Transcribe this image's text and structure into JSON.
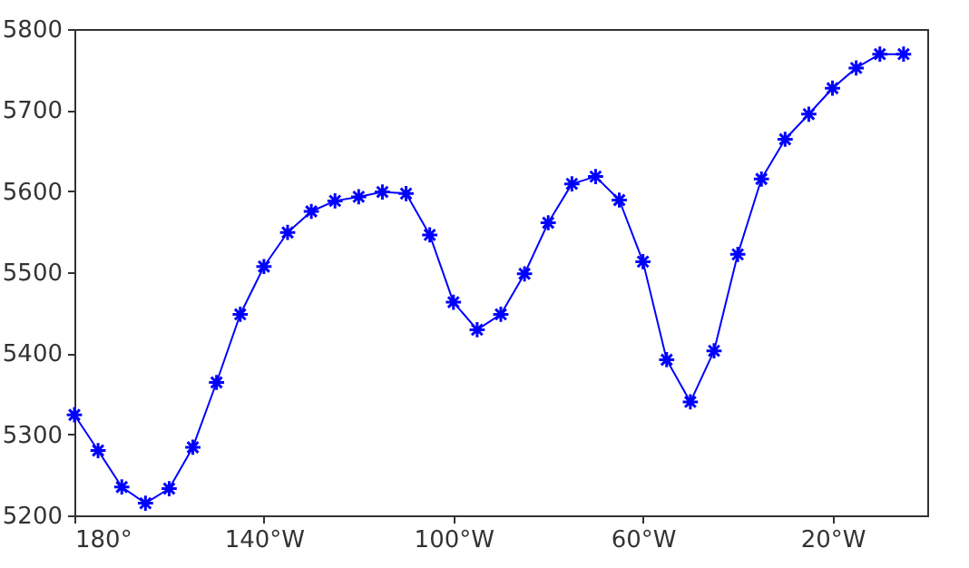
{
  "chart_data": {
    "type": "line",
    "x": [
      -180,
      -175,
      -170,
      -165,
      -160,
      -155,
      -150,
      -145,
      -140,
      -135,
      -130,
      -125,
      -120,
      -115,
      -110,
      -105,
      -100,
      -95,
      -90,
      -85,
      -80,
      -75,
      -70,
      -65,
      -60,
      -55,
      -50,
      -45,
      -40,
      -35,
      -30,
      -25,
      -20,
      -15,
      -10,
      -5
    ],
    "series": [
      {
        "color": "#0000ff",
        "values": [
          5324,
          5280,
          5235,
          5215,
          5233,
          5284,
          5364,
          5448,
          5507,
          5549,
          5575,
          5588,
          5593,
          5599,
          5597,
          5546,
          5463,
          5429,
          5448,
          5498,
          5561,
          5609,
          5618,
          5589,
          5513,
          5392,
          5340,
          5403,
          5522,
          5615,
          5664,
          5695,
          5727,
          5752,
          5769,
          5769
        ]
      }
    ],
    "xlim": [
      -180,
      0
    ],
    "xticks": [
      {
        "value": -180,
        "label": "180°"
      },
      {
        "value": -140,
        "label": "140°W"
      },
      {
        "value": -100,
        "label": "100°W"
      },
      {
        "value": -60,
        "label": "60°W"
      },
      {
        "value": -20,
        "label": "20°W"
      }
    ],
    "ylim": [
      5200,
      5800
    ],
    "yticks": [
      5200,
      5300,
      5400,
      5500,
      5600,
      5700,
      5800
    ],
    "marker": "cross",
    "line_style": "solid",
    "grid": false,
    "legend": false
  }
}
